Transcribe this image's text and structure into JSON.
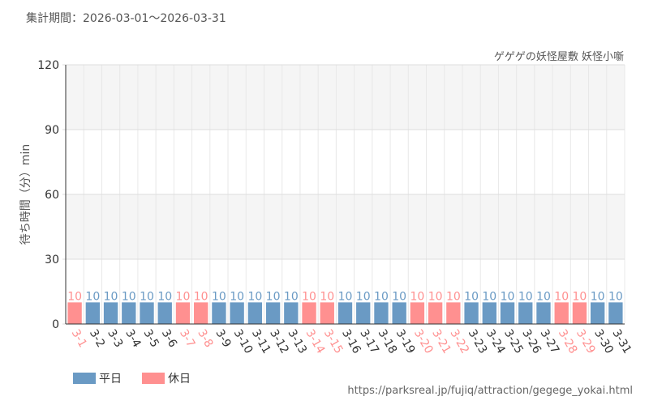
{
  "period_text": "集計期間：2026-03-01～2026-03-31",
  "source_url": "https://parksreal.jp/fujiq/attraction/gegege_yokai.html",
  "colors": {
    "weekday": "#6a9ac4",
    "holiday": "#ff9090",
    "grid_band": "#f5f5f5"
  },
  "chart_data": {
    "type": "bar",
    "title": "ゲゲゲの妖怪屋敷 妖怪小噺",
    "ylabel": "待ち時間（分）min",
    "ylim": [
      0,
      120
    ],
    "yticks": [
      0,
      30,
      60,
      90,
      120
    ],
    "grid": true,
    "legend": {
      "position": "bottom-left",
      "entries": [
        "平日",
        "休日"
      ]
    },
    "categories": [
      "3-1",
      "3-2",
      "3-3",
      "3-4",
      "3-5",
      "3-6",
      "3-7",
      "3-8",
      "3-9",
      "3-10",
      "3-11",
      "3-12",
      "3-13",
      "3-14",
      "3-15",
      "3-16",
      "3-17",
      "3-18",
      "3-19",
      "3-20",
      "3-21",
      "3-22",
      "3-23",
      "3-24",
      "3-25",
      "3-26",
      "3-27",
      "3-28",
      "3-29",
      "3-30",
      "3-31"
    ],
    "values": [
      10,
      10,
      10,
      10,
      10,
      10,
      10,
      10,
      10,
      10,
      10,
      10,
      10,
      10,
      10,
      10,
      10,
      10,
      10,
      10,
      10,
      10,
      10,
      10,
      10,
      10,
      10,
      10,
      10,
      10,
      10
    ],
    "day_type": [
      "holiday",
      "weekday",
      "weekday",
      "weekday",
      "weekday",
      "weekday",
      "holiday",
      "holiday",
      "weekday",
      "weekday",
      "weekday",
      "weekday",
      "weekday",
      "holiday",
      "holiday",
      "weekday",
      "weekday",
      "weekday",
      "weekday",
      "holiday",
      "holiday",
      "holiday",
      "weekday",
      "weekday",
      "weekday",
      "weekday",
      "weekday",
      "holiday",
      "holiday",
      "weekday",
      "weekday"
    ]
  }
}
